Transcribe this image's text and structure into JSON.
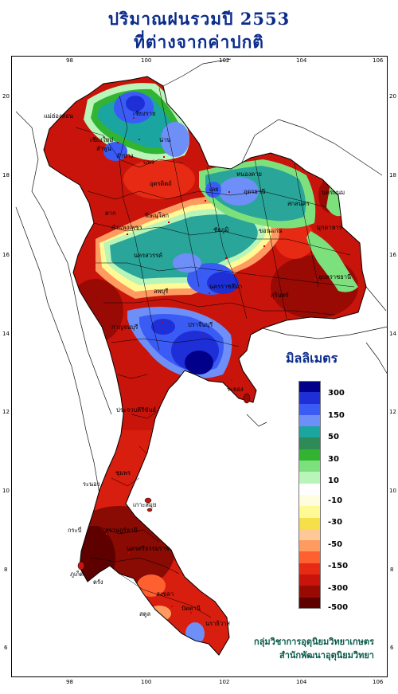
{
  "title": {
    "line1": "ปริมาณฝนรวมปี  2553",
    "line2": "ที่ต่างจากค่าปกติ"
  },
  "axes": {
    "lon_ticks": [
      "98",
      "100",
      "102",
      "104",
      "106"
    ],
    "lat_ticks": [
      "20",
      "18",
      "16",
      "14",
      "12",
      "10",
      "8",
      "6"
    ]
  },
  "legend": {
    "title": "มิลลิเมตร",
    "labels": [
      "300",
      "150",
      "50",
      "30",
      "10",
      "-10",
      "-30",
      "-50",
      "-150",
      "-300",
      "-500"
    ],
    "colors": [
      "#00008b",
      "#1e2fd8",
      "#3a5cf5",
      "#6f8ff8",
      "#1aa5a0",
      "#2e8b57",
      "#32b432",
      "#7ce07c",
      "#b9f5b9",
      "#ffffff",
      "#fffde0",
      "#fffa96",
      "#f5e04a",
      "#ffc896",
      "#ff9a60",
      "#ff6030",
      "#e62a14",
      "#c8140a",
      "#9a0a05",
      "#5e0000"
    ]
  },
  "credits": {
    "line1": "กลุ่มวิชาการอุตุนิยมวิทยาเกษตร",
    "line2": "สำนักพัฒนาอุตุนิยมวิทยา"
  },
  "provinces": [
    {
      "name": "เชียงราย"
    },
    {
      "name": "แม่ฮ่องสอน"
    },
    {
      "name": "เชียงใหม่"
    },
    {
      "name": "ลำพูน"
    },
    {
      "name": "น่าน"
    },
    {
      "name": "ลำปาง"
    },
    {
      "name": "แพร่"
    },
    {
      "name": "อุตรดิตถ์"
    },
    {
      "name": "หนองคาย"
    },
    {
      "name": "เลย"
    },
    {
      "name": "อุดรธานี"
    },
    {
      "name": "สกลนคร"
    },
    {
      "name": "นครพนม"
    },
    {
      "name": "ตาก"
    },
    {
      "name": "พิษณุโลก"
    },
    {
      "name": "มุกดาหาร"
    },
    {
      "name": "กำแพงเพชร"
    },
    {
      "name": "นครสวรรค์"
    },
    {
      "name": "ชัยภูมิ"
    },
    {
      "name": "ขอนแก่น"
    },
    {
      "name": "อุบลราชธานี"
    },
    {
      "name": "นครราชสีมา"
    },
    {
      "name": "สุรินทร์"
    },
    {
      "name": "ลพบุรี"
    },
    {
      "name": "กาญจนบุรี"
    },
    {
      "name": "ปราจีนบุรี"
    },
    {
      "name": "ระยอง"
    },
    {
      "name": "ประจวบคีรีขันธ์"
    },
    {
      "name": "ระนอง"
    },
    {
      "name": "ชุมพร"
    },
    {
      "name": "สุราษฎร์ธานี"
    },
    {
      "name": "กระบี่"
    },
    {
      "name": "นครศรีธรรมราช"
    },
    {
      "name": "ตรัง"
    },
    {
      "name": "สงขลา"
    },
    {
      "name": "ปัตตานี"
    },
    {
      "name": "นราธิวาส"
    },
    {
      "name": "สตูล"
    },
    {
      "name": "ภูเก็ต"
    },
    {
      "name": "เกาะสมุย"
    }
  ]
}
